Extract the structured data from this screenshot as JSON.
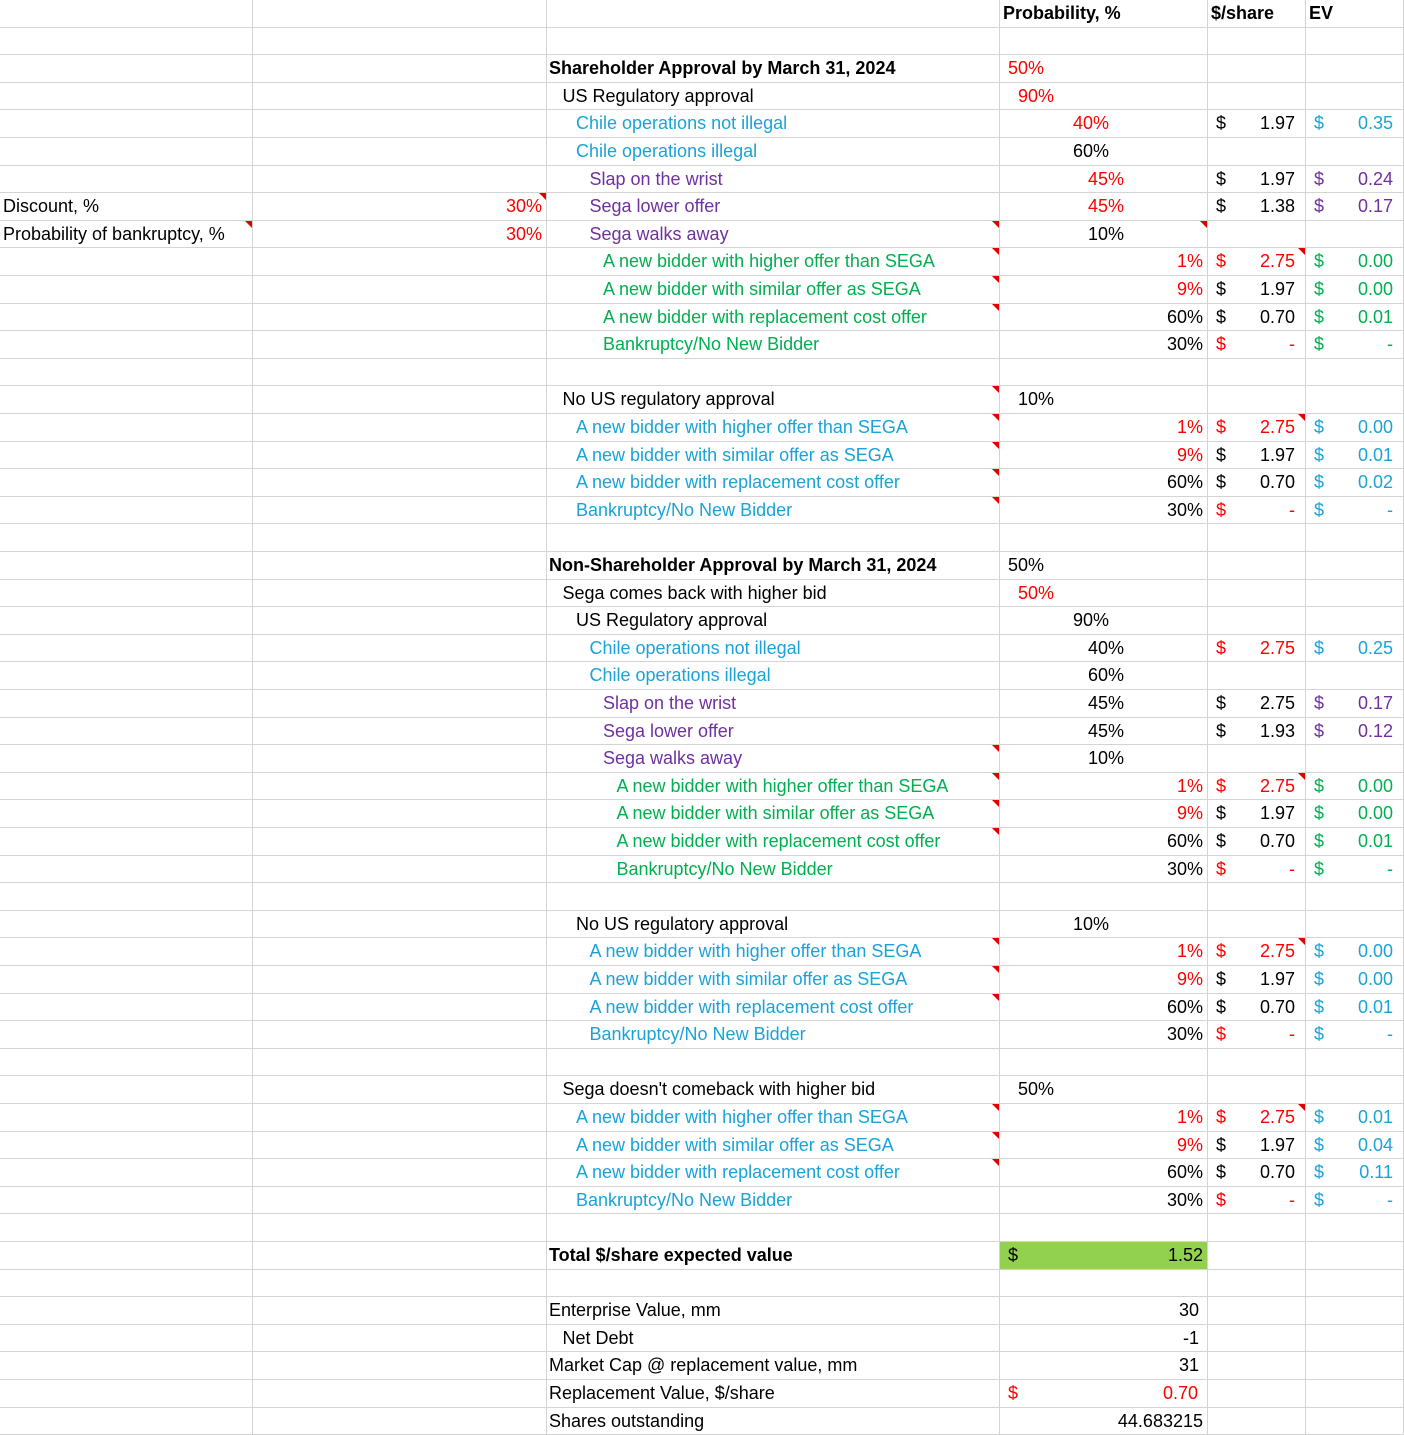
{
  "colors": {
    "black": "#000000",
    "red": "#ff0000",
    "blue": "#1aa3d9",
    "purple": "#7030a0",
    "green": "#00b050",
    "total_fill": "#92d050",
    "note_flag": "#e00000"
  },
  "header": {
    "probability": "Probability, %",
    "price": "$/share",
    "ev": "EV"
  },
  "rows": [
    {
      "label": "",
      "indent": 0,
      "p": "",
      "pcol": 0,
      "pcolor": "black",
      "cur": "",
      "curval": "",
      "curcolor": "black",
      "ev": "",
      "evval": "",
      "evcolor": "black",
      "labelcolor": "black"
    },
    {
      "label": "Shareholder Approval by March 31, 2024",
      "bold": true,
      "indent": 0,
      "p": "50%",
      "pcol": 0,
      "pcolor": "red",
      "labelcolor": "black"
    },
    {
      "label": "US Regulatory approval",
      "indent": 1,
      "p": "90%",
      "pcol": 1,
      "pcolor": "red",
      "labelcolor": "black"
    },
    {
      "label": "Chile operations not illegal",
      "indent": 2,
      "p": "40%",
      "pcol": 2,
      "pcolor": "red",
      "cur": "$",
      "curval": "1.97",
      "curcolor": "black",
      "ev": "$",
      "evval": "0.35",
      "evcolor": "blue",
      "labelcolor": "blue"
    },
    {
      "label": "Chile operations illegal",
      "indent": 2,
      "p": "60%",
      "pcol": 2,
      "pcolor": "black",
      "labelcolor": "blue"
    },
    {
      "label": "Slap on the wrist",
      "indent": 3,
      "p": "45%",
      "pcol": 3,
      "pcolor": "red",
      "cur": "$",
      "curval": "1.97",
      "curcolor": "black",
      "ev": "$",
      "evval": "0.24",
      "evcolor": "purple",
      "labelcolor": "purple"
    },
    {
      "label": "Sega lower offer",
      "indent": 3,
      "p": "45%",
      "pcol": 3,
      "pcolor": "red",
      "cur": "$",
      "curval": "1.38",
      "curcolor": "black",
      "ev": "$",
      "evval": "0.17",
      "evcolor": "purple",
      "labelcolor": "purple",
      "side_label": "Discount, %",
      "side_value": "30%",
      "side_flag": true
    },
    {
      "label": "Sega walks away",
      "indent": 3,
      "p": "10%",
      "pcol": 3,
      "pcolor": "black",
      "labelcolor": "purple",
      "side_label": "Probability of bankruptcy, %",
      "side_value": "30%",
      "side_label_flag": true,
      "label_flag": true,
      "p_flag": true
    },
    {
      "label": "A new bidder with higher offer than SEGA",
      "indent": 4,
      "p": "1%",
      "pcol": 4,
      "pcolor": "red",
      "cur": "$",
      "curval": "2.75",
      "curcolor": "red",
      "ev": "$",
      "evval": "0.00",
      "evcolor": "green",
      "labelcolor": "green",
      "label_flag": true,
      "cur_flag": true
    },
    {
      "label": "A new bidder with similar offer as SEGA",
      "indent": 4,
      "p": "9%",
      "pcol": 4,
      "pcolor": "red",
      "cur": "$",
      "curval": "1.97",
      "curcolor": "black",
      "ev": "$",
      "evval": "0.00",
      "evcolor": "green",
      "labelcolor": "green",
      "label_flag": true
    },
    {
      "label": "A new bidder with replacement cost offer",
      "indent": 4,
      "p": "60%",
      "pcol": 4,
      "pcolor": "black",
      "cur": "$",
      "curval": "0.70",
      "curcolor": "black",
      "ev": "$",
      "evval": "0.01",
      "evcolor": "green",
      "labelcolor": "green",
      "label_flag": true
    },
    {
      "label": "Bankruptcy/No New Bidder",
      "indent": 4,
      "p": "30%",
      "pcol": 4,
      "pcolor": "black",
      "cur": "$",
      "curval": "-",
      "curcolor": "red",
      "ev": "$",
      "evval": "-",
      "evcolor": "green",
      "labelcolor": "green"
    },
    {
      "label": "",
      "indent": 0
    },
    {
      "label": "No US regulatory approval",
      "indent": 1,
      "p": "10%",
      "pcol": 1,
      "pcolor": "black",
      "labelcolor": "black",
      "label_flag": true
    },
    {
      "label": "A new bidder with higher offer than SEGA",
      "indent": 2,
      "p": "1%",
      "pcol": 4,
      "pcolor": "red",
      "cur": "$",
      "curval": "2.75",
      "curcolor": "red",
      "ev": "$",
      "evval": "0.00",
      "evcolor": "blue",
      "labelcolor": "blue",
      "label_flag": true,
      "cur_flag": true
    },
    {
      "label": "A new bidder with similar offer as SEGA",
      "indent": 2,
      "p": "9%",
      "pcol": 4,
      "pcolor": "red",
      "cur": "$",
      "curval": "1.97",
      "curcolor": "black",
      "ev": "$",
      "evval": "0.01",
      "evcolor": "blue",
      "labelcolor": "blue",
      "label_flag": true
    },
    {
      "label": "A new bidder with replacement cost offer",
      "indent": 2,
      "p": "60%",
      "pcol": 4,
      "pcolor": "black",
      "cur": "$",
      "curval": "0.70",
      "curcolor": "black",
      "ev": "$",
      "evval": "0.02",
      "evcolor": "blue",
      "labelcolor": "blue",
      "label_flag": true
    },
    {
      "label": "Bankruptcy/No New Bidder",
      "indent": 2,
      "p": "30%",
      "pcol": 4,
      "pcolor": "black",
      "cur": "$",
      "curval": "-",
      "curcolor": "red",
      "ev": "$",
      "evval": "-",
      "evcolor": "blue",
      "labelcolor": "blue",
      "label_flag": true
    },
    {
      "label": "",
      "indent": 0
    },
    {
      "label": "Non-Shareholder Approval by March 31, 2024",
      "bold": true,
      "indent": 0,
      "p": "50%",
      "pcol": 0,
      "pcolor": "black",
      "labelcolor": "black"
    },
    {
      "label": "Sega comes back with higher bid",
      "indent": 1,
      "p": "50%",
      "pcol": 1,
      "pcolor": "red",
      "labelcolor": "black"
    },
    {
      "label": "US Regulatory approval",
      "indent": 2,
      "p": "90%",
      "pcol": 2,
      "pcolor": "black",
      "labelcolor": "black"
    },
    {
      "label": "Chile operations not illegal",
      "indent": 3,
      "p": "40%",
      "pcol": 3,
      "pcolor": "black",
      "cur": "$",
      "curval": "2.75",
      "curcolor": "red",
      "ev": "$",
      "evval": "0.25",
      "evcolor": "blue",
      "labelcolor": "blue"
    },
    {
      "label": "Chile operations illegal",
      "indent": 3,
      "p": "60%",
      "pcol": 3,
      "pcolor": "black",
      "labelcolor": "blue"
    },
    {
      "label": "Slap on the wrist",
      "indent": 4,
      "p": "45%",
      "pcol": 3.5,
      "pcolor": "black",
      "cur": "$",
      "curval": "2.75",
      "curcolor": "black",
      "ev": "$",
      "evval": "0.17",
      "evcolor": "purple",
      "labelcolor": "purple"
    },
    {
      "label": "Sega lower offer",
      "indent": 4,
      "p": "45%",
      "pcol": 3.5,
      "pcolor": "black",
      "cur": "$",
      "curval": "1.93",
      "curcolor": "black",
      "ev": "$",
      "evval": "0.12",
      "evcolor": "purple",
      "labelcolor": "purple"
    },
    {
      "label": "Sega walks away",
      "indent": 4,
      "p": "10%",
      "pcol": 3.5,
      "pcolor": "black",
      "labelcolor": "purple",
      "label_flag": true
    },
    {
      "label": "A new bidder with higher offer than SEGA",
      "indent": 5,
      "p": "1%",
      "pcol": 4,
      "pcolor": "red",
      "cur": "$",
      "curval": "2.75",
      "curcolor": "red",
      "ev": "$",
      "evval": "0.00",
      "evcolor": "green",
      "labelcolor": "green",
      "label_flag": true,
      "cur_flag": true
    },
    {
      "label": "A new bidder with similar offer as SEGA",
      "indent": 5,
      "p": "9%",
      "pcol": 4,
      "pcolor": "red",
      "cur": "$",
      "curval": "1.97",
      "curcolor": "black",
      "ev": "$",
      "evval": "0.00",
      "evcolor": "green",
      "labelcolor": "green",
      "label_flag": true
    },
    {
      "label": "A new bidder with replacement cost offer",
      "indent": 5,
      "p": "60%",
      "pcol": 4,
      "pcolor": "black",
      "cur": "$",
      "curval": "0.70",
      "curcolor": "black",
      "ev": "$",
      "evval": "0.01",
      "evcolor": "green",
      "labelcolor": "green",
      "label_flag": true
    },
    {
      "label": "Bankruptcy/No New Bidder",
      "indent": 5,
      "p": "30%",
      "pcol": 4,
      "pcolor": "black",
      "cur": "$",
      "curval": "-",
      "curcolor": "red",
      "ev": "$",
      "evval": "-",
      "evcolor": "green",
      "labelcolor": "green"
    },
    {
      "label": "",
      "indent": 0
    },
    {
      "label": "No US regulatory approval",
      "indent": 2,
      "p": "10%",
      "pcol": 2,
      "pcolor": "black",
      "labelcolor": "black"
    },
    {
      "label": "A new bidder with higher offer than SEGA",
      "indent": 3,
      "p": "1%",
      "pcol": 4,
      "pcolor": "red",
      "cur": "$",
      "curval": "2.75",
      "curcolor": "red",
      "ev": "$",
      "evval": "0.00",
      "evcolor": "blue",
      "labelcolor": "blue",
      "label_flag": true,
      "cur_flag": true
    },
    {
      "label": "A new bidder with similar offer as SEGA",
      "indent": 3,
      "p": "9%",
      "pcol": 4,
      "pcolor": "red",
      "cur": "$",
      "curval": "1.97",
      "curcolor": "black",
      "ev": "$",
      "evval": "0.00",
      "evcolor": "blue",
      "labelcolor": "blue",
      "label_flag": true
    },
    {
      "label": "A new bidder with replacement cost offer",
      "indent": 3,
      "p": "60%",
      "pcol": 4,
      "pcolor": "black",
      "cur": "$",
      "curval": "0.70",
      "curcolor": "black",
      "ev": "$",
      "evval": "0.01",
      "evcolor": "blue",
      "labelcolor": "blue",
      "label_flag": true
    },
    {
      "label": "Bankruptcy/No New Bidder",
      "indent": 3,
      "p": "30%",
      "pcol": 4,
      "pcolor": "black",
      "cur": "$",
      "curval": "-",
      "curcolor": "red",
      "ev": "$",
      "evval": "-",
      "evcolor": "blue",
      "labelcolor": "blue"
    },
    {
      "label": "",
      "indent": 0
    },
    {
      "label": "Sega doesn't comeback with higher bid",
      "indent": 1,
      "p": "50%",
      "pcol": 1,
      "pcolor": "black",
      "labelcolor": "black"
    },
    {
      "label": "A new bidder with higher offer than SEGA",
      "indent": 2,
      "p": "1%",
      "pcol": 4,
      "pcolor": "red",
      "cur": "$",
      "curval": "2.75",
      "curcolor": "red",
      "ev": "$",
      "evval": "0.01",
      "evcolor": "blue",
      "labelcolor": "blue",
      "label_flag": true,
      "cur_flag": true
    },
    {
      "label": "A new bidder with similar offer as SEGA",
      "indent": 2,
      "p": "9%",
      "pcol": 4,
      "pcolor": "red",
      "cur": "$",
      "curval": "1.97",
      "curcolor": "black",
      "ev": "$",
      "evval": "0.04",
      "evcolor": "blue",
      "labelcolor": "blue",
      "label_flag": true
    },
    {
      "label": "A new bidder with replacement cost offer",
      "indent": 2,
      "p": "60%",
      "pcol": 4,
      "pcolor": "black",
      "cur": "$",
      "curval": "0.70",
      "curcolor": "black",
      "ev": "$",
      "evval": "0.11",
      "evcolor": "blue",
      "labelcolor": "blue",
      "label_flag": true
    },
    {
      "label": "Bankruptcy/No New Bidder",
      "indent": 2,
      "p": "30%",
      "pcol": 4,
      "pcolor": "black",
      "cur": "$",
      "curval": "-",
      "curcolor": "red",
      "ev": "$",
      "evval": "-",
      "evcolor": "blue",
      "labelcolor": "blue"
    },
    {
      "label": "",
      "indent": 0
    },
    {
      "label": "Total $/share expected value",
      "bold": true,
      "indent": 0,
      "total_sym": "$",
      "total_val": "1.52",
      "labelcolor": "black"
    },
    {
      "label": "",
      "indent": 0
    },
    {
      "label": "Enterprise Value, mm",
      "indent": 0,
      "p": "30",
      "pcol": 4.3,
      "pcolor": "black",
      "labelcolor": "black"
    },
    {
      "label": "Net Debt",
      "indent": 1,
      "p": "-1",
      "pcol": 4.3,
      "pcolor": "black",
      "labelcolor": "black"
    },
    {
      "label": "Market Cap @ replacement value, mm",
      "indent": 0,
      "p": "31",
      "pcol": 4.3,
      "pcolor": "black",
      "labelcolor": "black"
    },
    {
      "label": "Replacement Value, $/share",
      "indent": 0,
      "repl_sym": "$",
      "repl_val": "0.70",
      "labelcolor": "black"
    },
    {
      "label": "Shares outstanding",
      "indent": 0,
      "p": "44.683215",
      "pcol": 4,
      "pcolor": "black",
      "labelcolor": "black"
    }
  ]
}
